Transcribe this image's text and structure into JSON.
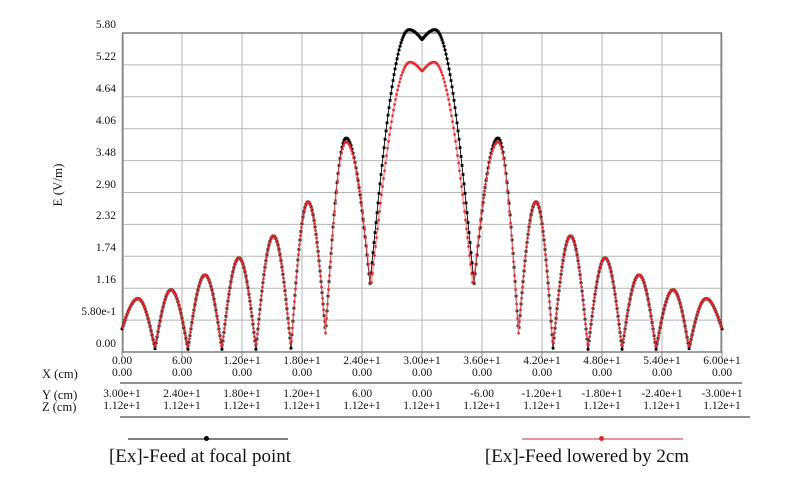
{
  "chart_data": {
    "type": "line",
    "title": "",
    "xlabel": "",
    "ylabel": "E (V/m)",
    "x_range": [
      0,
      60
    ],
    "y_range": [
      0,
      5.8
    ],
    "grid": true,
    "legend_position": "bottom",
    "x_ticks": [
      0,
      6,
      12,
      18,
      24,
      30,
      36,
      42,
      48,
      54,
      60
    ],
    "y_ticks": [
      0,
      0.58,
      1.16,
      1.74,
      2.32,
      2.9,
      3.48,
      4.06,
      4.64,
      5.22,
      5.8
    ],
    "sample_step": 0.1,
    "series": [
      {
        "name": "[Ex]-Feed at focal point",
        "marker_color": "#000000",
        "line_color": "#1a1a1a",
        "marker_size": 2.9,
        "sample_offset": 0,
        "keypoints": [
          [
            0,
            0.42
          ],
          [
            1.6,
            0.97
          ],
          [
            3.3,
            0.06
          ],
          [
            4.9,
            1.13
          ],
          [
            6.6,
            0.05
          ],
          [
            8.3,
            1.4
          ],
          [
            10,
            0.05
          ],
          [
            11.7,
            1.71
          ],
          [
            13.4,
            0.05
          ],
          [
            15.15,
            2.11
          ],
          [
            16.9,
            0.07
          ],
          [
            18.6,
            2.73
          ],
          [
            20.35,
            0.34
          ],
          [
            22.4,
            3.89
          ],
          [
            24.8,
            1.25
          ],
          [
            28.7,
            5.86
          ],
          [
            30,
            5.68
          ],
          [
            31.3,
            5.86
          ],
          [
            35.2,
            1.25
          ],
          [
            37.6,
            3.89
          ],
          [
            39.65,
            0.34
          ],
          [
            41.4,
            2.73
          ],
          [
            43.1,
            0.07
          ],
          [
            44.85,
            2.11
          ],
          [
            46.6,
            0.05
          ],
          [
            48.3,
            1.71
          ],
          [
            50,
            0.05
          ],
          [
            51.7,
            1.4
          ],
          [
            53.4,
            0.05
          ],
          [
            55.1,
            1.13
          ],
          [
            56.7,
            0.06
          ],
          [
            58.4,
            0.97
          ],
          [
            60,
            0.42
          ]
        ]
      },
      {
        "name": "[Ex]-Feed lowered by 2cm",
        "marker_color": "#e62528",
        "line_color": "#ee6e6e",
        "marker_size": 2.5,
        "sample_offset": 0.05,
        "keypoints": [
          [
            0,
            0.42
          ],
          [
            1.6,
            0.97
          ],
          [
            3.3,
            0.06
          ],
          [
            4.9,
            1.13
          ],
          [
            6.6,
            0.05
          ],
          [
            8.3,
            1.4
          ],
          [
            10,
            0.05
          ],
          [
            11.7,
            1.71
          ],
          [
            13.4,
            0.05
          ],
          [
            15.15,
            2.11
          ],
          [
            16.9,
            0.07
          ],
          [
            18.6,
            2.73
          ],
          [
            20.35,
            0.34
          ],
          [
            22.4,
            3.82
          ],
          [
            24.9,
            1.18
          ],
          [
            28.8,
            5.27
          ],
          [
            30,
            5.1
          ],
          [
            31.2,
            5.27
          ],
          [
            35.1,
            1.18
          ],
          [
            37.6,
            3.82
          ],
          [
            39.65,
            0.34
          ],
          [
            41.4,
            2.73
          ],
          [
            43.1,
            0.07
          ],
          [
            44.85,
            2.11
          ],
          [
            46.6,
            0.05
          ],
          [
            48.3,
            1.71
          ],
          [
            50,
            0.05
          ],
          [
            51.7,
            1.4
          ],
          [
            53.4,
            0.05
          ],
          [
            55.1,
            1.13
          ],
          [
            56.7,
            0.06
          ],
          [
            58.4,
            0.97
          ],
          [
            60,
            0.42
          ]
        ]
      }
    ]
  },
  "y_axis": {
    "title": "E (V/m)",
    "tick_labels": [
      "5.80",
      "5.22",
      "4.64",
      "4.06",
      "3.48",
      "2.90",
      "2.32",
      "1.74",
      "1.16",
      "5.80e-1",
      "0.00"
    ]
  },
  "x_axis": {
    "dist_row": [
      "0.00",
      "6.00",
      "1.20e+1",
      "1.80e+1",
      "2.40e+1",
      "3.00e+1",
      "3.60e+1",
      "4.20e+1",
      "4.80e+1",
      "5.40e+1",
      "6.00e+1"
    ],
    "rows": [
      {
        "label": "X (cm)",
        "values": [
          "0.00",
          "0.00",
          "0.00",
          "0.00",
          "0.00",
          "0.00",
          "0.00",
          "0.00",
          "0.00",
          "0.00",
          "0.00"
        ]
      },
      {
        "label": "Y (cm)",
        "values": [
          "3.00e+1",
          "2.40e+1",
          "1.80e+1",
          "1.20e+1",
          "6.00",
          "0.00",
          "-6.00",
          "-1.20e+1",
          "-1.80e+1",
          "-2.40e+1",
          "-3.00e+1"
        ]
      },
      {
        "label": "Z (cm)",
        "values": [
          "1.12e+1",
          "1.12e+1",
          "1.12e+1",
          "1.12e+1",
          "1.12e+1",
          "1.12e+1",
          "1.12e+1",
          "1.12e+1",
          "1.12e+1",
          "1.12e+1",
          "1.12e+1"
        ]
      }
    ]
  },
  "legend": [
    {
      "label": "[Ex]-Feed at focal point",
      "line_color": "#7d7d7d",
      "marker_color": "#000000"
    },
    {
      "label": "[Ex]-Feed lowered by 2cm",
      "line_color": "#e39598",
      "marker_color": "#e62528"
    }
  ],
  "colors": {
    "grid": "#b5b5b5",
    "frame": "#858585",
    "text": "#141414",
    "background": "#ffffff"
  }
}
